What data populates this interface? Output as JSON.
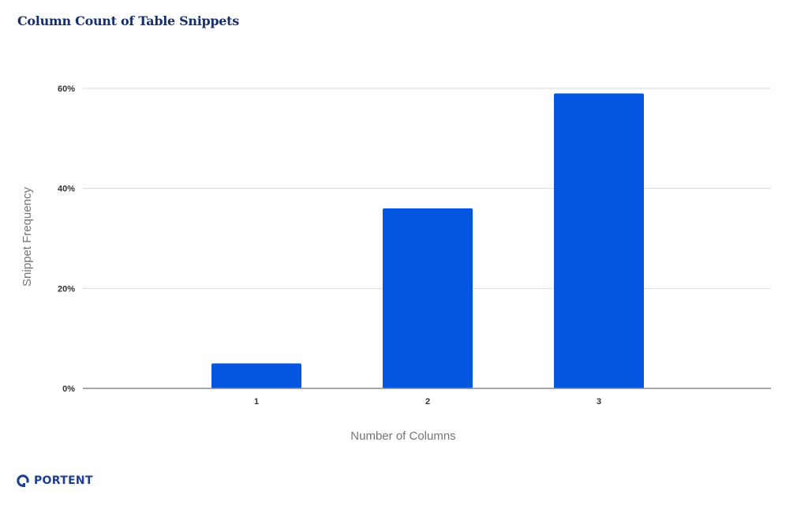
{
  "chart_data": {
    "type": "bar",
    "title": "Column Count of Table Snippets",
    "xlabel": "Number of Columns",
    "ylabel": "Snippet Frequency",
    "categories": [
      "1",
      "2",
      "3"
    ],
    "values": [
      5,
      36,
      59
    ],
    "ylim": [
      0,
      60
    ],
    "yticks": [
      0,
      20,
      40,
      60
    ],
    "ytick_labels": [
      "0%",
      "20%",
      "40%",
      "60%"
    ],
    "grid": true,
    "legend": "none",
    "bar_color": "#0455e0"
  },
  "brand": {
    "name": "PORTENT",
    "icon": "portent-logo-icon",
    "color": "#1c3f94"
  },
  "colors": {
    "title": "#16306e",
    "grid": "#d9d9d9",
    "axis": "#888888",
    "tick_text": "#333333",
    "label_text": "#757575"
  }
}
